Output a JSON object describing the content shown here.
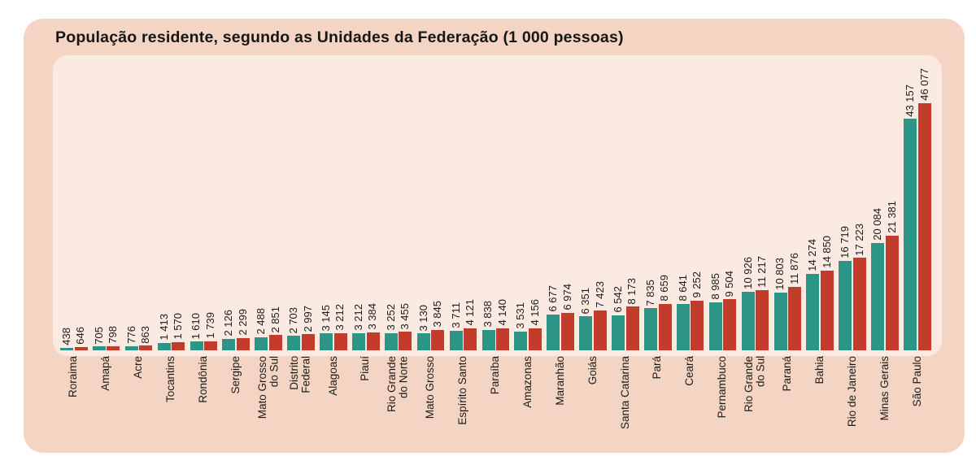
{
  "title": "População residente, segundo as Unidades da Federação (1 000 pessoas)",
  "colors": {
    "card_background": "#f4d5c4",
    "plot_background": "#faeae1",
    "series_teal": "#2d9585",
    "series_red": "#c33b2b",
    "text": "#1b1b1b"
  },
  "chart_data": {
    "type": "bar",
    "title": "População residente, segundo as Unidades da Federação (1 000 pessoas)",
    "xlabel": "",
    "ylabel": "",
    "ymax": 46077,
    "grid": false,
    "legend": "none",
    "value_labels_rotated": true,
    "categories": [
      "Roraima",
      "Amapá",
      "Acre",
      "Tocantins",
      "Rondônia",
      "Sergipe",
      "Mato Grosso\ndo Sul",
      "Distrito\nFederal",
      "Alagoas",
      "Piauí",
      "Rio Grande\ndo Norte",
      "Mato Grosso",
      "Espírito Santo",
      "Paraíba",
      "Amazonas",
      "Maranhão",
      "Goiás",
      "Santa Catarina",
      "Pará",
      "Ceará",
      "Pernambuco",
      "Rio Grande\ndo Sul",
      "Paraná",
      "Bahia",
      "Rio de Janeiro",
      "Minas Gerais",
      "São Paulo"
    ],
    "series": [
      {
        "name": "teal",
        "color": "#2d9585",
        "values": [
          438,
          705,
          776,
          1413,
          1610,
          2126,
          2488,
          2703,
          3145,
          3212,
          3252,
          3130,
          3711,
          3838,
          3531,
          6677,
          6351,
          6542,
          7835,
          8641,
          8985,
          10926,
          10803,
          14274,
          16719,
          20084,
          43157
        ],
        "value_labels": [
          "438",
          "705",
          "776",
          "1 413",
          "1 610",
          "2 126",
          "2 488",
          "2 703",
          "3 145",
          "3 212",
          "3 252",
          "3 130",
          "3 711",
          "3 838",
          "3 531",
          "6 677",
          "6 351",
          "6 542",
          "7 835",
          "8 641",
          "8 985",
          "10 926",
          "10 803",
          "14 274",
          "16 719",
          "20 084",
          "43 157"
        ]
      },
      {
        "name": "red",
        "color": "#c33b2b",
        "values": [
          646,
          798,
          863,
          1570,
          1739,
          2299,
          2851,
          2997,
          3212,
          3384,
          3455,
          3845,
          4121,
          4140,
          4156,
          6974,
          7423,
          8173,
          8659,
          9252,
          9504,
          11217,
          11876,
          14850,
          17223,
          21381,
          46077
        ],
        "value_labels": [
          "646",
          "798",
          "863",
          "1 570",
          "1 739",
          "2 299",
          "2 851",
          "2 997",
          "3 212",
          "3 384",
          "3 455",
          "3 845",
          "4 121",
          "4 140",
          "4 156",
          "6 974",
          "7 423",
          "8 173",
          "8 659",
          "9 252",
          "9 504",
          "11 217",
          "11 876",
          "14 850",
          "17 223",
          "21 381",
          "46 077"
        ]
      }
    ]
  }
}
